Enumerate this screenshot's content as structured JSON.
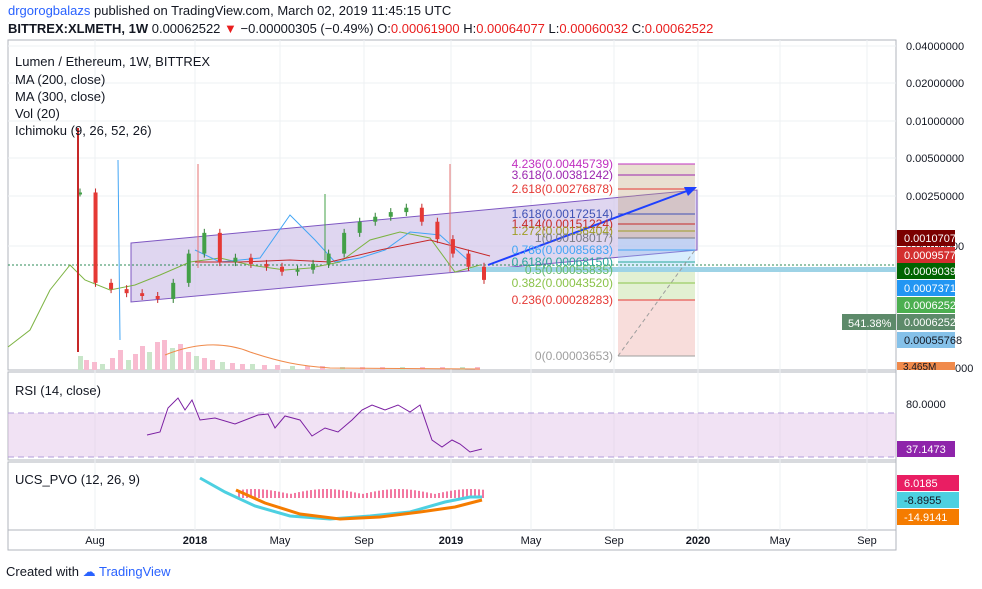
{
  "header": {
    "user": "drgorogbalazs",
    "published": "published on TradingView.com, March 02, 2019 11:45:15 UTC",
    "symbol": "BITTREX:XLMETH, 1W",
    "last": "0.00062522",
    "change": "−0.00000305 (−0.49%)",
    "o_label": "O:",
    "o_value": "0.00061900",
    "h_label": "H:",
    "h_value": "0.00064077",
    "l_label": "L:",
    "l_value": "0.00060032",
    "c_label": "C:",
    "c_value": "0.00062522"
  },
  "legend": {
    "title": "Lumen / Ethereum, 1W, BITTREX",
    "ma200": "MA (200, close)",
    "ma300": "MA (300, close)",
    "vol": "Vol (20)",
    "ichimoku": "Ichimoku (9, 26, 52, 26)"
  },
  "price_axis": {
    "ticks": [
      "0.04000000",
      "0.02000000",
      "0.01000000",
      "0.00500000",
      "0.00250000",
      "0.00100000"
    ],
    "partial": "000"
  },
  "price_badges": [
    {
      "text": "0.00107071",
      "color": "#7b0000"
    },
    {
      "text": "0.00095775",
      "color": "#d32f2f"
    },
    {
      "text": "0.00090393",
      "color": "#006400"
    },
    {
      "text": "0.00073715",
      "color": "#2196f3"
    },
    {
      "text": "0.00062522",
      "color": "#4caf50"
    },
    {
      "text": "0.00062522",
      "color": "#5d8a6a"
    },
    {
      "text": "0.00055768",
      "color": "#85c1e9"
    }
  ],
  "percent_badge": "541.38%",
  "volume_badge": "3.465M",
  "fibonacci": [
    {
      "label": "4.236(0.00445739)",
      "color": "#c030c0"
    },
    {
      "label": "3.618(0.00381242)",
      "color": "#9c27b0"
    },
    {
      "label": "2.618(0.00276878)",
      "color": "#e53935"
    },
    {
      "label": "1.618(0.00172514)",
      "color": "#3f51b5"
    },
    {
      "label": "1.414(0.00151224)",
      "color": "#c62828"
    },
    {
      "label": "1.272(0.00136404)",
      "color": "#9e9d24"
    },
    {
      "label": "1(0.00108017)",
      "color": "#787b86"
    },
    {
      "label": "0.786(0.00085683)",
      "color": "#42a5f5"
    },
    {
      "label": "0.618(0.00068150)",
      "color": "#26a69a"
    },
    {
      "label": "0.5(0.00055835)",
      "color": "#66bb6a"
    },
    {
      "label": "0.382(0.00043520)",
      "color": "#8bc34a"
    },
    {
      "label": "0.236(0.00028283)",
      "color": "#e53935"
    },
    {
      "label": "0(0.00003653)",
      "color": "#9e9e9e"
    }
  ],
  "rsi": {
    "label": "RSI (14, close)",
    "tick": "80.0000",
    "value": "37.1473",
    "color": "#8e24aa"
  },
  "pvo": {
    "label": "UCS_PVO (12, 26, 9)",
    "values": [
      {
        "text": "6.0185",
        "color": "#e91e63"
      },
      {
        "text": "-8.8955",
        "color": "#4dd0e1"
      },
      {
        "text": "-14.9141",
        "color": "#f57c00"
      }
    ]
  },
  "time_axis": [
    "Aug",
    "2018",
    "May",
    "Sep",
    "2019",
    "May",
    "Sep",
    "2020",
    "May",
    "Sep"
  ],
  "footer": {
    "created": "Created with",
    "brand": "TradingView"
  },
  "chart_data": {
    "type": "line",
    "title": "Lumen / Ethereum, 1W, BITTREX",
    "xlabel": "",
    "ylabel": "",
    "log_scale": true,
    "x_ticks": [
      "Aug",
      "2018",
      "May",
      "Sep",
      "2019",
      "May",
      "Sep",
      "2020",
      "May",
      "Sep"
    ],
    "y_ticks": [
      0.04,
      0.02,
      0.01,
      0.005,
      0.0025,
      0.001
    ],
    "series": [
      {
        "name": "BITTREX:XLMETH",
        "values": [
          0.0021,
          0.0006,
          0.00055,
          0.00052,
          0.0005,
          0.00048,
          0.0006,
          0.0009,
          0.0012,
          0.0008,
          0.00085,
          0.00078,
          0.00075,
          0.0007,
          0.00072,
          0.00078,
          0.0009,
          0.0012,
          0.0014,
          0.0015,
          0.0016,
          0.0017,
          0.0014,
          0.0011,
          0.0009,
          0.00075,
          0.00062522
        ]
      }
    ],
    "fib_levels": [
      4.236,
      3.618,
      2.618,
      1.618,
      1.414,
      1.272,
      1,
      0.786,
      0.618,
      0.5,
      0.382,
      0.236,
      0
    ],
    "fib_prices": [
      0.00445739,
      0.00381242,
      0.00276878,
      0.00172514,
      0.00151224,
      0.00136404,
      0.00108017,
      0.00085683,
      0.0006815,
      0.00055835,
      0.0004352,
      0.00028283,
      3.653e-05
    ],
    "grid": true,
    "legend": "top-left"
  }
}
